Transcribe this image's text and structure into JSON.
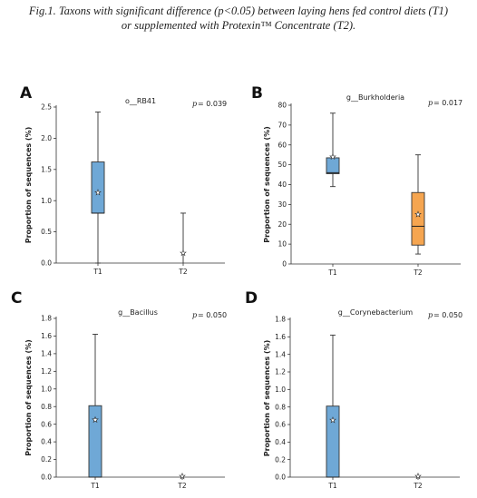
{
  "caption_line1": "Fig.1. Taxons with significant difference (p<0.05) between laying hens fed control diets (T1)",
  "caption_line2": "or supplemented with Protexin™ Concentrate (T2).",
  "chart_data": [
    {
      "type": "box",
      "panel": "A",
      "title": "o__RB41",
      "p_label": "p",
      "p_value": "= 0.039",
      "ylabel": "Proportion of sequences (%)",
      "ylim": [
        0,
        2.5
      ],
      "yticks": [
        "0.0",
        "0.5",
        "1.0",
        "1.5",
        "2.0",
        "2.5"
      ],
      "categories": [
        "T1",
        "T2"
      ],
      "boxes": [
        {
          "min": 0.0,
          "q1": 0.8,
          "median": 0.8,
          "q3": 1.62,
          "max": 2.42,
          "mean": 1.13,
          "color": "#6fa8d6"
        },
        {
          "min": 0.0,
          "q1": 0.0,
          "median": 0.0,
          "q3": 0.0,
          "max": 0.8,
          "mean": 0.16,
          "color": "#6fa8d6"
        }
      ]
    },
    {
      "type": "box",
      "panel": "B",
      "title": "g__Burkholderia",
      "p_label": "p",
      "p_value": "= 0.017",
      "ylabel": "Proportion of sequences (%)",
      "ylim": [
        0,
        80
      ],
      "yticks": [
        "0",
        "10",
        "20",
        "30",
        "40",
        "50",
        "60",
        "70",
        "80"
      ],
      "categories": [
        "T1",
        "T2"
      ],
      "boxes": [
        {
          "min": 39,
          "q1": 45.5,
          "median": 46,
          "q3": 53.5,
          "max": 76,
          "mean": 54,
          "color": "#6fa8d6"
        },
        {
          "min": 5,
          "q1": 9.5,
          "median": 19,
          "q3": 36,
          "max": 55,
          "mean": 25,
          "color": "#f5a550"
        }
      ]
    },
    {
      "type": "box",
      "panel": "C",
      "title": "g__Bacillus",
      "p_label": "p",
      "p_value": "= 0.050",
      "ylabel": "Proportion of sequences (%)",
      "ylim": [
        0,
        1.8
      ],
      "yticks": [
        "0.0",
        "0.2",
        "0.4",
        "0.6",
        "0.8",
        "1.0",
        "1.2",
        "1.4",
        "1.6",
        "1.8"
      ],
      "categories": [
        "T1",
        "T2"
      ],
      "boxes": [
        {
          "min": 0.0,
          "q1": 0.0,
          "median": 0.0,
          "q3": 0.81,
          "max": 1.62,
          "mean": 0.65,
          "color": "#6fa8d6"
        },
        {
          "min": 0.0,
          "q1": 0.0,
          "median": 0.0,
          "q3": 0.0,
          "max": 0.0,
          "mean": 0.01,
          "color": "#6fa8d6"
        }
      ]
    },
    {
      "type": "box",
      "panel": "D",
      "title": "g__Corynebacterium",
      "p_label": "p",
      "p_value": "= 0.050",
      "ylabel": "Proportion of sequences (%)",
      "ylim": [
        0,
        1.8
      ],
      "yticks": [
        "0.0",
        "0.2",
        "0.4",
        "0.6",
        "0.8",
        "1.0",
        "1.2",
        "1.4",
        "1.6",
        "1.8"
      ],
      "categories": [
        "T1",
        "T2"
      ],
      "boxes": [
        {
          "min": 0.0,
          "q1": 0.0,
          "median": 0.0,
          "q3": 0.81,
          "max": 1.62,
          "mean": 0.65,
          "color": "#6fa8d6"
        },
        {
          "min": 0.0,
          "q1": 0.0,
          "median": 0.0,
          "q3": 0.0,
          "max": 0.0,
          "mean": 0.01,
          "color": "#6fa8d6"
        }
      ]
    }
  ]
}
